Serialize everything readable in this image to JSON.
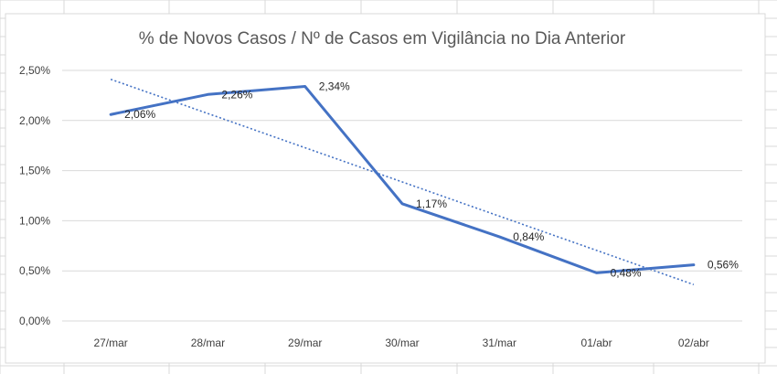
{
  "chart_data": {
    "type": "line",
    "title": "% de Novos Casos / Nº de Casos em Vigilância no Dia Anterior",
    "xlabel": "",
    "ylabel": "",
    "categories": [
      "27/mar",
      "28/mar",
      "29/mar",
      "30/mar",
      "31/mar",
      "01/abr",
      "02/abr"
    ],
    "series": [
      {
        "values": [
          2.06,
          2.26,
          2.34,
          1.17,
          0.84,
          0.48,
          0.56
        ],
        "labels": [
          "2,06%",
          "2,26%",
          "2,34%",
          "1,17%",
          "0,84%",
          "0,48%",
          "0,56%"
        ],
        "color": "#4472C4"
      }
    ],
    "trendline": {
      "type": "linear",
      "style": "dotted",
      "color": "#4472C4"
    },
    "ylim": [
      0,
      2.5
    ],
    "yticks": [
      0,
      0.5,
      1.0,
      1.5,
      2.0,
      2.5
    ],
    "ytick_labels": [
      "0,00%",
      "0,50%",
      "1,00%",
      "1,50%",
      "2,00%",
      "2,50%"
    ],
    "grid": true,
    "legend": "none"
  },
  "colors": {
    "sheet_grid": "#d9d9d9",
    "chart_border": "#d9d9d9",
    "gridline": "#d9d9d9"
  }
}
